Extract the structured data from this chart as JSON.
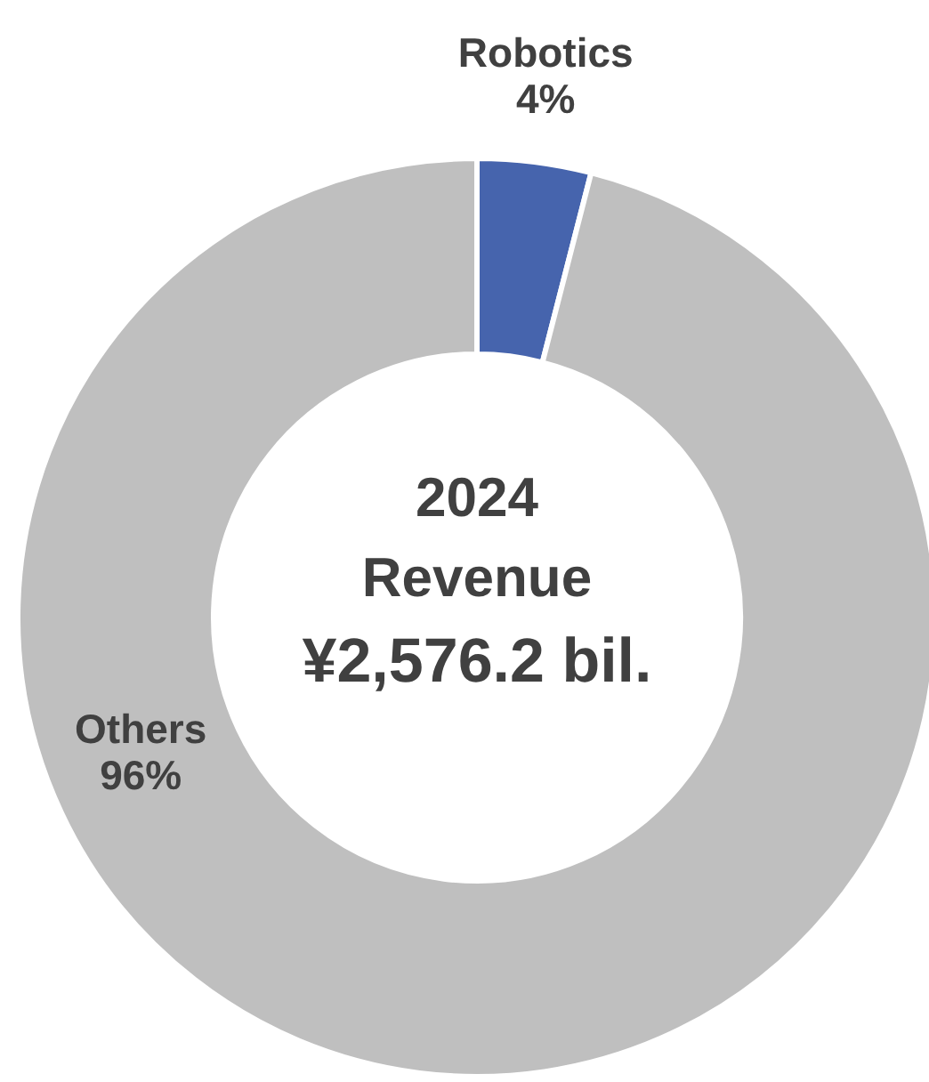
{
  "chart_data": {
    "type": "donut",
    "title": "2024 Revenue",
    "subtitle": "¥2,576.2 bil.",
    "categories": [
      "Robotics",
      "Others"
    ],
    "values": [
      4,
      96
    ],
    "colors": [
      "#4664ad",
      "#bfbfbf"
    ],
    "value_labels": [
      "4%",
      "96%"
    ]
  }
}
